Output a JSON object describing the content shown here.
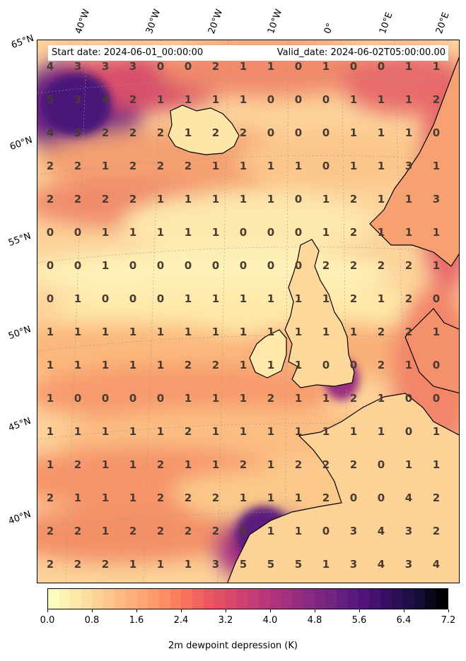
{
  "map": {
    "start_date": "Start date: 2024-06-01_00:00:00",
    "valid_date": "Valid_date: 2024-06-02T05:00:00.00",
    "lon_labels": [
      "40°W",
      "30°W",
      "20°W",
      "10°W",
      "0°",
      "10°E",
      "20°E"
    ],
    "lat_labels": [
      "65°N",
      "60°N",
      "55°N",
      "50°N",
      "45°N",
      "40°N"
    ],
    "grid_values": [
      [
        4,
        3,
        3,
        3,
        0,
        0,
        2,
        1,
        1,
        0,
        1,
        0,
        0,
        1,
        1
      ],
      [
        5,
        3,
        4,
        2,
        1,
        1,
        1,
        1,
        0,
        0,
        0,
        1,
        1,
        1,
        2
      ],
      [
        4,
        3,
        2,
        2,
        2,
        1,
        2,
        2,
        0,
        0,
        0,
        1,
        1,
        1,
        0
      ],
      [
        2,
        2,
        1,
        2,
        2,
        2,
        1,
        1,
        1,
        1,
        0,
        1,
        1,
        3,
        1
      ],
      [
        2,
        2,
        2,
        2,
        1,
        1,
        1,
        1,
        1,
        0,
        1,
        2,
        1,
        1,
        3
      ],
      [
        0,
        0,
        1,
        1,
        1,
        1,
        1,
        0,
        0,
        0,
        1,
        2,
        1,
        1,
        1
      ],
      [
        0,
        0,
        1,
        0,
        0,
        0,
        0,
        0,
        0,
        0,
        2,
        2,
        2,
        2,
        1
      ],
      [
        0,
        1,
        0,
        0,
        0,
        1,
        1,
        1,
        1,
        1,
        1,
        2,
        1,
        2,
        0
      ],
      [
        1,
        1,
        1,
        1,
        1,
        1,
        1,
        1,
        1,
        1,
        1,
        1,
        2,
        2,
        1
      ],
      [
        1,
        1,
        1,
        1,
        1,
        2,
        2,
        1,
        1,
        1,
        0,
        0,
        2,
        1,
        0
      ],
      [
        1,
        0,
        0,
        0,
        0,
        1,
        1,
        1,
        2,
        1,
        1,
        2,
        1,
        0,
        0
      ],
      [
        1,
        1,
        1,
        1,
        1,
        2,
        1,
        1,
        1,
        1,
        1,
        1,
        1,
        0,
        1
      ],
      [
        1,
        2,
        1,
        1,
        2,
        1,
        1,
        2,
        1,
        2,
        2,
        2,
        0,
        1,
        1
      ],
      [
        2,
        1,
        1,
        1,
        2,
        2,
        2,
        1,
        1,
        1,
        2,
        0,
        0,
        4,
        2
      ],
      [
        2,
        2,
        1,
        2,
        2,
        2,
        2,
        5,
        1,
        1,
        0,
        3,
        4,
        3,
        2
      ],
      [
        2,
        2,
        2,
        1,
        1,
        1,
        3,
        5,
        5,
        5,
        1,
        3,
        4,
        3,
        4
      ]
    ]
  },
  "colorbar": {
    "label": "2m dewpoint depression (K)",
    "range": [
      0.0,
      7.2
    ],
    "tick_labels": [
      "0.0",
      "0.8",
      "1.6",
      "2.4",
      "3.2",
      "4.0",
      "4.8",
      "5.6",
      "6.4",
      "7.2"
    ],
    "colors": [
      "#fcfdbf",
      "#fde4a6",
      "#feca8d",
      "#feb078",
      "#fd9668",
      "#f8765c",
      "#eb5760",
      "#d6456c",
      "#bc3978",
      "#a1307e",
      "#852a81",
      "#6a2181",
      "#50127b",
      "#330f5e",
      "#180f3d",
      "#000004"
    ]
  }
}
